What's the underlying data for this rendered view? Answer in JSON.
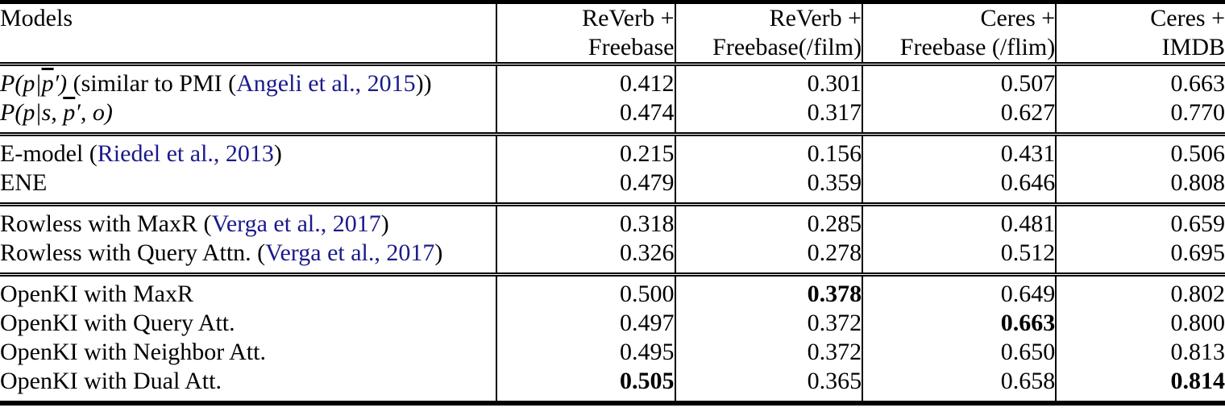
{
  "table": {
    "colors": {
      "citation": "#1a1a8c",
      "rule": "#000000",
      "text": "#000000",
      "background": "#ffffff"
    },
    "columns": [
      {
        "line1": "Models",
        "line2": ""
      },
      {
        "line1": "ReVerb +",
        "line2": "Freebase"
      },
      {
        "line1": "ReVerb +",
        "line2": "Freebase(/film)"
      },
      {
        "line1": "Ceres +",
        "line2": "Freebase (/flim)"
      },
      {
        "line1": "Ceres +",
        "line2": "IMDB"
      }
    ],
    "sections": [
      {
        "rows": [
          {
            "label": [
              {
                "t": "math",
                "s": "P(p|"
              },
              {
                "t": "mathol",
                "s": "p"
              },
              {
                "t": "math",
                "s": "′)"
              },
              {
                "t": "plain",
                "s": " (similar to PMI ("
              },
              {
                "t": "cite",
                "s": "Angeli et al., 2015"
              },
              {
                "t": "plain",
                "s": "))"
              }
            ],
            "values": [
              "0.412",
              "0.301",
              "0.507",
              "0.663"
            ],
            "bold": [
              false,
              false,
              false,
              false
            ]
          },
          {
            "label": [
              {
                "t": "math",
                "s": "P(p|s, "
              },
              {
                "t": "mathol",
                "s": "p"
              },
              {
                "t": "math",
                "s": "′, o)"
              }
            ],
            "values": [
              "0.474",
              "0.317",
              "0.627",
              "0.770"
            ],
            "bold": [
              false,
              false,
              false,
              false
            ]
          }
        ]
      },
      {
        "rows": [
          {
            "label": [
              {
                "t": "plain",
                "s": "E-model ("
              },
              {
                "t": "cite",
                "s": "Riedel et al., 2013"
              },
              {
                "t": "plain",
                "s": ")"
              }
            ],
            "values": [
              "0.215",
              "0.156",
              "0.431",
              "0.506"
            ],
            "bold": [
              false,
              false,
              false,
              false
            ]
          },
          {
            "label": [
              {
                "t": "plain",
                "s": "ENE"
              }
            ],
            "values": [
              "0.479",
              "0.359",
              "0.646",
              "0.808"
            ],
            "bold": [
              false,
              false,
              false,
              false
            ]
          }
        ]
      },
      {
        "rows": [
          {
            "label": [
              {
                "t": "plain",
                "s": "Rowless with MaxR ("
              },
              {
                "t": "cite",
                "s": "Verga et al., 2017"
              },
              {
                "t": "plain",
                "s": ")"
              }
            ],
            "values": [
              "0.318",
              "0.285",
              "0.481",
              "0.659"
            ],
            "bold": [
              false,
              false,
              false,
              false
            ]
          },
          {
            "label": [
              {
                "t": "plain",
                "s": "Rowless with Query Attn. ("
              },
              {
                "t": "cite",
                "s": "Verga et al., 2017"
              },
              {
                "t": "plain",
                "s": ")"
              }
            ],
            "values": [
              "0.326",
              "0.278",
              "0.512",
              "0.695"
            ],
            "bold": [
              false,
              false,
              false,
              false
            ]
          }
        ]
      },
      {
        "rows": [
          {
            "label": [
              {
                "t": "plain",
                "s": "OpenKI with MaxR"
              }
            ],
            "values": [
              "0.500",
              "0.378",
              "0.649",
              "0.802"
            ],
            "bold": [
              false,
              true,
              false,
              false
            ]
          },
          {
            "label": [
              {
                "t": "plain",
                "s": "OpenKI with Query Att."
              }
            ],
            "values": [
              "0.497",
              "0.372",
              "0.663",
              "0.800"
            ],
            "bold": [
              false,
              false,
              true,
              false
            ]
          },
          {
            "label": [
              {
                "t": "plain",
                "s": "OpenKI with Neighbor Att."
              }
            ],
            "values": [
              "0.495",
              "0.372",
              "0.650",
              "0.813"
            ],
            "bold": [
              false,
              false,
              false,
              false
            ]
          },
          {
            "label": [
              {
                "t": "plain",
                "s": "OpenKI with Dual Att."
              }
            ],
            "values": [
              "0.505",
              "0.365",
              "0.658",
              "0.814"
            ],
            "bold": [
              true,
              false,
              false,
              true
            ]
          }
        ]
      }
    ]
  }
}
